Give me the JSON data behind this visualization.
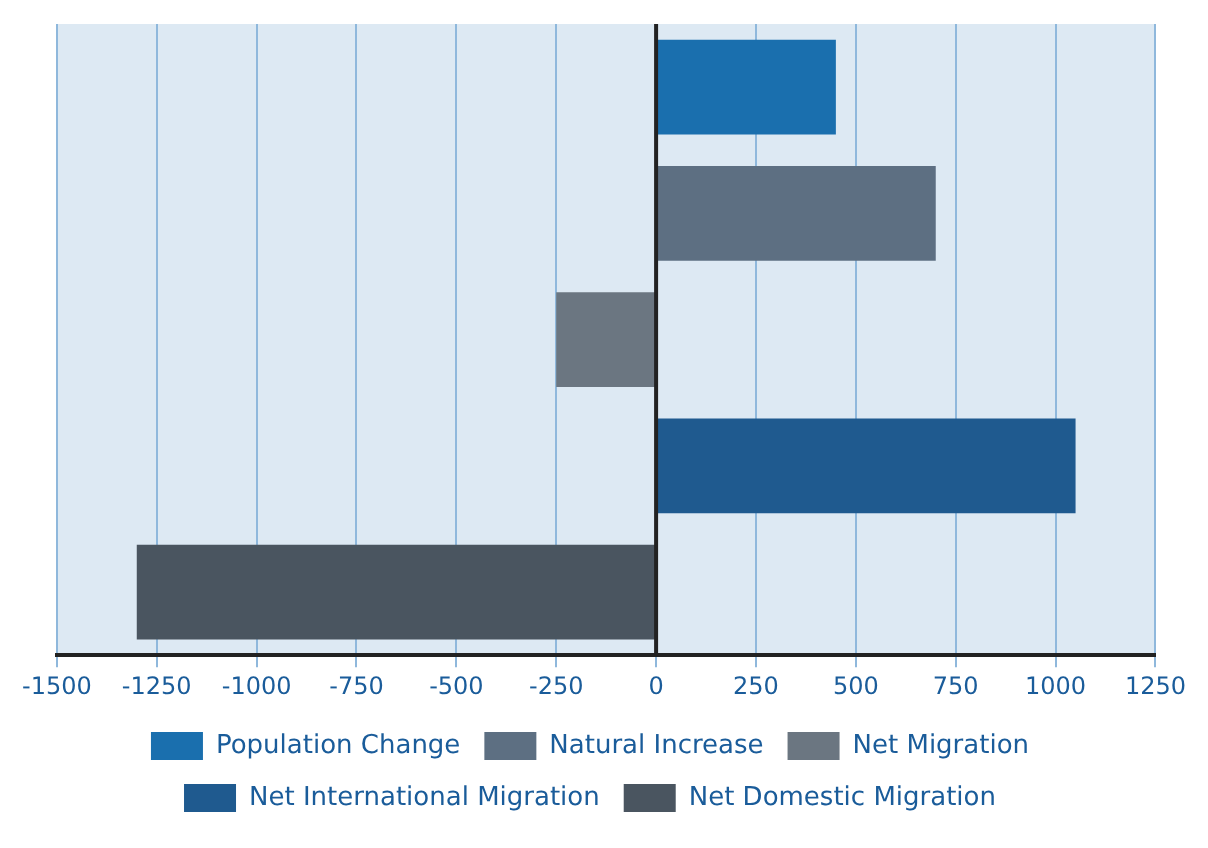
{
  "chart_data": {
    "type": "bar",
    "orientation": "horizontal",
    "categories": [
      null,
      null,
      null,
      null,
      null
    ],
    "series": [
      {
        "name": "Population Change",
        "color": "#1a6fae",
        "values": [
          450,
          null,
          null,
          null,
          null
        ]
      },
      {
        "name": "Natural Increase",
        "color": "#5d6f82",
        "values": [
          null,
          700,
          null,
          null,
          null
        ]
      },
      {
        "name": "Net Migration",
        "color": "#6b7681",
        "values": [
          null,
          null,
          -250,
          null,
          null
        ]
      },
      {
        "name": "Net International Migration",
        "color": "#1f5a8f",
        "values": [
          null,
          null,
          null,
          1050,
          null
        ]
      },
      {
        "name": "Net Domestic Migration",
        "color": "#4a5560",
        "values": [
          null,
          null,
          null,
          null,
          -1300
        ]
      }
    ],
    "xlim": [
      -1500,
      1250
    ],
    "xticks": [
      -1500,
      -1250,
      -1000,
      -750,
      -500,
      -250,
      0,
      250,
      500,
      750,
      1000,
      1250
    ],
    "grid": "x",
    "legend": "bottom"
  }
}
